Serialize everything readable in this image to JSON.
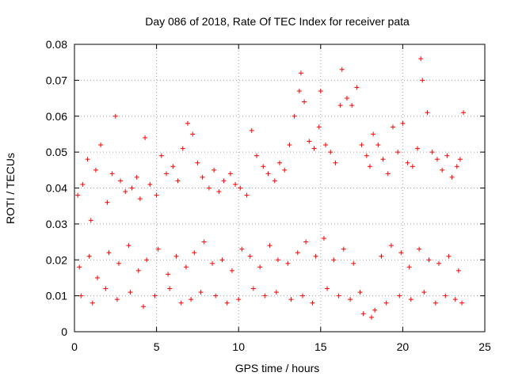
{
  "chart_data": {
    "type": "scatter",
    "title": "Day 086 of 2018, Rate Of TEC Index for receiver pata",
    "xlabel": "GPS time / hours",
    "ylabel": "ROTI / TECUs",
    "xlim": [
      0,
      25
    ],
    "ylim": [
      0,
      0.08
    ],
    "xticks": [
      0,
      5,
      10,
      15,
      20,
      25
    ],
    "xtick_labels": [
      "0",
      "5",
      "10",
      "15",
      "20",
      "25"
    ],
    "yticks": [
      0,
      0.01,
      0.02,
      0.03,
      0.04,
      0.05,
      0.06,
      0.07,
      0.08
    ],
    "ytick_labels": [
      "0",
      "0.01",
      "0.02",
      "0.03",
      "0.04",
      "0.05",
      "0.06",
      "0.07",
      "0.08"
    ],
    "grid": true,
    "marker": "+",
    "marker_color": "#ff0000",
    "series": [
      {
        "name": "ROTI",
        "x": [
          0.2,
          0.5,
          0.8,
          1.0,
          1.3,
          1.6,
          2.0,
          2.3,
          2.5,
          2.8,
          3.1,
          3.5,
          3.8,
          4.0,
          4.3,
          4.6,
          5.0,
          5.3,
          5.6,
          6.0,
          6.3,
          6.6,
          6.9,
          7.2,
          7.5,
          7.8,
          8.2,
          8.5,
          8.8,
          9.1,
          9.5,
          9.8,
          10.1,
          10.5,
          10.8,
          11.1,
          11.5,
          11.8,
          12.2,
          12.5,
          12.8,
          13.1,
          13.4,
          13.7,
          13.8,
          14.0,
          14.3,
          14.6,
          14.9,
          15.0,
          15.3,
          15.6,
          15.9,
          16.2,
          16.3,
          16.6,
          16.9,
          17.2,
          17.5,
          17.8,
          18.0,
          18.2,
          18.5,
          18.8,
          19.1,
          19.4,
          19.7,
          20.0,
          20.3,
          20.6,
          20.9,
          21.1,
          21.2,
          21.5,
          21.8,
          22.1,
          22.4,
          22.7,
          23.0,
          23.3,
          23.5,
          23.7,
          0.3,
          0.9,
          1.4,
          2.1,
          2.7,
          3.3,
          3.9,
          4.4,
          5.1,
          5.7,
          6.2,
          6.8,
          7.3,
          7.9,
          8.4,
          9.0,
          9.6,
          10.2,
          10.7,
          11.3,
          11.9,
          12.4,
          13.0,
          13.6,
          14.1,
          14.7,
          15.2,
          15.8,
          16.4,
          17.0,
          17.6,
          18.1,
          18.7,
          19.3,
          19.9,
          20.4,
          21.0,
          21.6,
          22.2,
          22.8,
          23.4,
          0.4,
          1.1,
          1.9,
          2.6,
          3.4,
          4.2,
          4.9,
          5.8,
          6.5,
          7.1,
          7.7,
          8.6,
          9.3,
          10.0,
          10.9,
          11.6,
          12.3,
          13.2,
          13.9,
          14.5,
          15.4,
          16.1,
          16.8,
          17.4,
          18.3,
          19.0,
          19.8,
          20.5,
          21.3,
          22.0,
          22.6,
          23.2,
          23.6
        ],
        "y": [
          0.038,
          0.041,
          0.048,
          0.031,
          0.045,
          0.052,
          0.036,
          0.044,
          0.06,
          0.042,
          0.039,
          0.04,
          0.043,
          0.037,
          0.054,
          0.041,
          0.038,
          0.049,
          0.044,
          0.046,
          0.042,
          0.051,
          0.058,
          0.055,
          0.047,
          0.043,
          0.04,
          0.045,
          0.039,
          0.042,
          0.044,
          0.041,
          0.04,
          0.038,
          0.056,
          0.049,
          0.046,
          0.044,
          0.042,
          0.047,
          0.045,
          0.052,
          0.06,
          0.067,
          0.072,
          0.064,
          0.053,
          0.051,
          0.057,
          0.067,
          0.052,
          0.05,
          0.047,
          0.063,
          0.073,
          0.065,
          0.063,
          0.068,
          0.052,
          0.049,
          0.046,
          0.055,
          0.052,
          0.048,
          0.044,
          0.057,
          0.05,
          0.058,
          0.047,
          0.046,
          0.051,
          0.076,
          0.07,
          0.061,
          0.05,
          0.048,
          0.045,
          0.049,
          0.043,
          0.046,
          0.048,
          0.061,
          0.018,
          0.021,
          0.015,
          0.022,
          0.019,
          0.024,
          0.017,
          0.02,
          0.023,
          0.016,
          0.021,
          0.018,
          0.022,
          0.025,
          0.019,
          0.02,
          0.017,
          0.023,
          0.021,
          0.018,
          0.024,
          0.02,
          0.019,
          0.022,
          0.025,
          0.021,
          0.026,
          0.02,
          0.023,
          0.019,
          0.005,
          0.004,
          0.021,
          0.024,
          0.022,
          0.018,
          0.023,
          0.02,
          0.019,
          0.021,
          0.017,
          0.01,
          0.008,
          0.012,
          0.009,
          0.011,
          0.007,
          0.01,
          0.012,
          0.008,
          0.009,
          0.011,
          0.01,
          0.008,
          0.009,
          0.012,
          0.01,
          0.011,
          0.009,
          0.01,
          0.008,
          0.012,
          0.01,
          0.009,
          0.011,
          0.006,
          0.008,
          0.01,
          0.009,
          0.011,
          0.008,
          0.01,
          0.009,
          0.008
        ]
      }
    ]
  }
}
